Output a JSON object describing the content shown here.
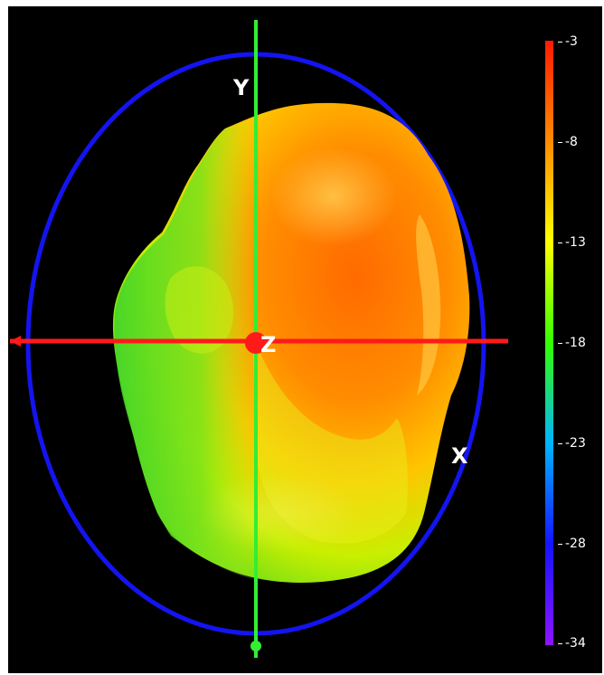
{
  "axes": {
    "x_label": "X",
    "y_label": "Y",
    "z_label": "Z",
    "x_color": "#ff1a1a",
    "y_color": "#33ee33",
    "z_color": "#ff1a1a"
  },
  "ellipse_color": "#1414f0",
  "colorbar": {
    "ticks": [
      "-3",
      "-8",
      "-13",
      "-18",
      "-23",
      "-28",
      "-34"
    ],
    "colors": [
      "#ff1a00",
      "#ff8c00",
      "#ffff00",
      "#33ff00",
      "#00b4ff",
      "#1414ff",
      "#8c14ff"
    ],
    "min": -34,
    "max": -3
  }
}
